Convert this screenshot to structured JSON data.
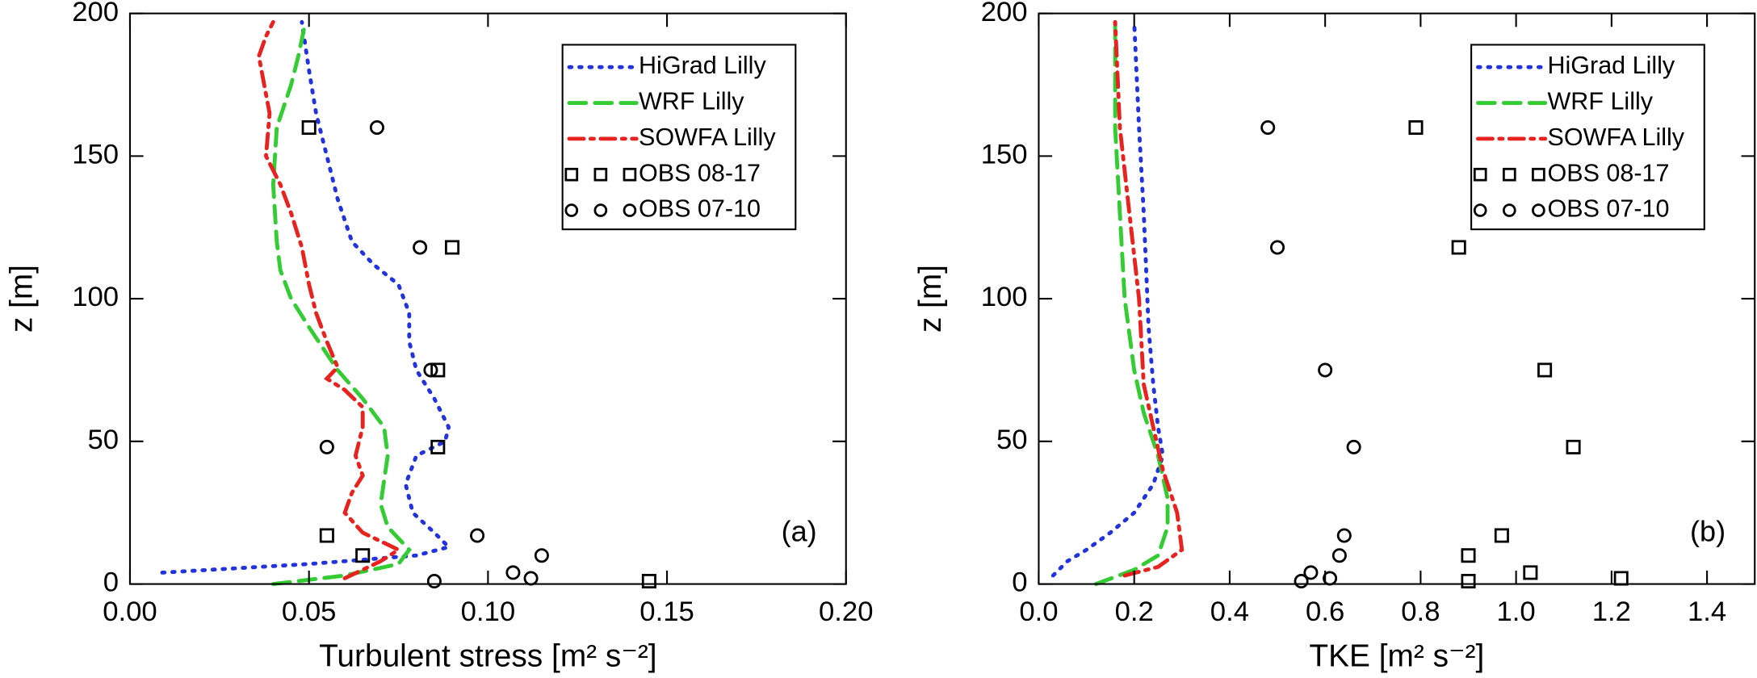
{
  "chart_data": [
    {
      "type": "line",
      "xlabel": "Turbulent stress [m² s⁻²]",
      "ylabel": "z [m]",
      "annotation": "(a)",
      "xlim": [
        0,
        0.2
      ],
      "ylim": [
        0,
        200
      ],
      "legend": "upper right",
      "xticks": [
        {
          "value": 0,
          "label": "0.00"
        },
        {
          "value": 0.05,
          "label": "0.05"
        },
        {
          "value": 0.1,
          "label": "0.10"
        },
        {
          "value": 0.15,
          "label": "0.15"
        },
        {
          "value": 0.2,
          "label": "0.20"
        }
      ],
      "yticks": [
        0,
        50,
        100,
        150,
        200
      ],
      "series": [
        {
          "name": "HiGrad Lilly",
          "color": "#2233dd",
          "style": "dotted",
          "x": [
            0.009,
            0.05,
            0.08,
            0.089,
            0.085,
            0.079,
            0.077,
            0.08,
            0.088,
            0.089,
            0.085,
            0.08,
            0.078,
            0.078,
            0.075,
            0.068,
            0.062,
            0.058,
            0.055,
            0.052,
            0.05,
            0.048
          ],
          "y": [
            4,
            7,
            10,
            13,
            18,
            25,
            35,
            45,
            50,
            55,
            65,
            75,
            85,
            95,
            105,
            112,
            120,
            135,
            150,
            165,
            180,
            197
          ]
        },
        {
          "name": "WRF Lilly",
          "color": "#33cc33",
          "style": "dashed",
          "x": [
            0.04,
            0.06,
            0.075,
            0.078,
            0.072,
            0.07,
            0.072,
            0.071,
            0.065,
            0.058,
            0.05,
            0.045,
            0.042,
            0.041,
            0.04,
            0.041,
            0.045,
            0.047,
            0.049
          ],
          "y": [
            0,
            3,
            7,
            12,
            20,
            28,
            45,
            55,
            65,
            75,
            90,
            100,
            110,
            120,
            140,
            160,
            175,
            185,
            197
          ]
        },
        {
          "name": "SOWFA Lilly",
          "color": "#e8231f",
          "style": "dashdot",
          "x": [
            0.06,
            0.07,
            0.075,
            0.065,
            0.06,
            0.062,
            0.065,
            0.063,
            0.065,
            0.065,
            0.06,
            0.055,
            0.058,
            0.055,
            0.052,
            0.05,
            0.048,
            0.045,
            0.042,
            0.038,
            0.039,
            0.036,
            0.038,
            0.04
          ],
          "y": [
            2,
            8,
            12,
            18,
            25,
            32,
            38,
            45,
            55,
            62,
            68,
            72,
            76,
            85,
            95,
            105,
            118,
            130,
            140,
            150,
            165,
            185,
            192,
            197
          ]
        },
        {
          "name": "OBS 08-17",
          "color": "#000000",
          "marker": "square",
          "x": [
            0.05,
            0.09,
            0.086,
            0.086,
            0.055,
            0.065,
            0.145
          ],
          "y": [
            160,
            118,
            75,
            48,
            17,
            10,
            1
          ]
        },
        {
          "name": "OBS 07-10",
          "color": "#000000",
          "marker": "circle",
          "x": [
            0.069,
            0.081,
            0.084,
            0.055,
            0.097,
            0.115,
            0.107,
            0.112,
            0.085
          ],
          "y": [
            160,
            118,
            75,
            48,
            17,
            10,
            4,
            2,
            1
          ]
        }
      ]
    },
    {
      "type": "line",
      "xlabel": "TKE [m² s⁻²]",
      "ylabel": "z [m]",
      "annotation": "(b)",
      "xlim": [
        0,
        1.5
      ],
      "ylim": [
        0,
        200
      ],
      "legend": "upper right",
      "xticks": [
        {
          "value": 0,
          "label": "0.0"
        },
        0.2,
        0.4,
        0.6,
        0.8,
        {
          "value": 1,
          "label": "1.0"
        },
        1.2,
        1.4
      ],
      "yticks": [
        0,
        50,
        100,
        150,
        200
      ],
      "series": [
        {
          "name": "HiGrad Lilly",
          "color": "#2233dd",
          "style": "dotted",
          "x": [
            0.03,
            0.06,
            0.1,
            0.15,
            0.2,
            0.24,
            0.26,
            0.25,
            0.24,
            0.23,
            0.225,
            0.22,
            0.21,
            0.2
          ],
          "y": [
            3,
            8,
            12,
            18,
            25,
            35,
            45,
            55,
            70,
            90,
            110,
            130,
            160,
            197
          ]
        },
        {
          "name": "WRF Lilly",
          "color": "#33cc33",
          "style": "dashed",
          "x": [
            0.12,
            0.2,
            0.25,
            0.27,
            0.27,
            0.25,
            0.22,
            0.2,
            0.18,
            0.17,
            0.16,
            0.16
          ],
          "y": [
            0,
            5,
            10,
            20,
            30,
            45,
            60,
            75,
            100,
            130,
            160,
            197
          ]
        },
        {
          "name": "SOWFA Lilly",
          "color": "#e8231f",
          "style": "dashdot",
          "x": [
            0.18,
            0.25,
            0.3,
            0.29,
            0.26,
            0.24,
            0.22,
            0.21,
            0.19,
            0.17,
            0.16
          ],
          "y": [
            3,
            6,
            12,
            25,
            40,
            55,
            70,
            100,
            130,
            160,
            197
          ]
        },
        {
          "name": "OBS 08-17",
          "color": "#000000",
          "marker": "square",
          "x": [
            0.79,
            0.88,
            1.06,
            1.12,
            0.97,
            0.9,
            1.03,
            1.22,
            0.9
          ],
          "y": [
            160,
            118,
            75,
            48,
            17,
            10,
            4,
            2,
            1
          ]
        },
        {
          "name": "OBS 07-10",
          "color": "#000000",
          "marker": "circle",
          "x": [
            0.48,
            0.5,
            0.6,
            0.66,
            0.64,
            0.63,
            0.57,
            0.61,
            0.55
          ],
          "y": [
            160,
            118,
            75,
            48,
            17,
            10,
            4,
            2,
            1
          ]
        }
      ]
    }
  ]
}
